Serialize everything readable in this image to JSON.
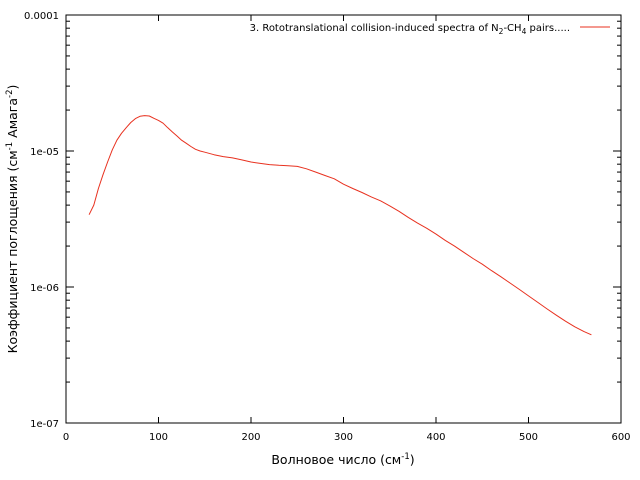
{
  "chart_data": {
    "type": "line",
    "title": "",
    "xlabel": {
      "text": "Волновое число (см",
      "sup": "-1",
      "tail": ")"
    },
    "ylabel": {
      "part1": "Коэффициент поглощения (см",
      "sup1": "-1",
      "part2": " Амага",
      "sup2": "-2",
      "tail": ")"
    },
    "x_scale": "linear",
    "y_scale": "log",
    "xlim": [
      0,
      600
    ],
    "ylim": [
      1e-07,
      0.0001
    ],
    "grid": false,
    "legend_position": "top-right",
    "x_ticks": [
      {
        "value": 0,
        "label": "0"
      },
      {
        "value": 100,
        "label": "100"
      },
      {
        "value": 200,
        "label": "200"
      },
      {
        "value": 300,
        "label": "300"
      },
      {
        "value": 400,
        "label": "400"
      },
      {
        "value": 500,
        "label": "500"
      },
      {
        "value": 600,
        "label": "600"
      }
    ],
    "y_ticks": [
      {
        "value": 1e-07,
        "label": "1e-07"
      },
      {
        "value": 1e-06,
        "label": "1e-06"
      },
      {
        "value": 1e-05,
        "label": "1e-05"
      },
      {
        "value": 0.0001,
        "label": "0.0001"
      }
    ],
    "series": [
      {
        "name": "3. Rototranslational collision-induced spectra of N2-CH4 pairs.....",
        "legend_parts": [
          {
            "t": "3. Rototranslational collision-induced spectra of N",
            "s": ""
          },
          {
            "t": "2",
            "s": "sub"
          },
          {
            "t": "-CH",
            "s": ""
          },
          {
            "t": "4",
            "s": "sub"
          },
          {
            "t": " pairs.....",
            "s": ""
          }
        ],
        "color": "#e8311f",
        "x": [
          25,
          30,
          35,
          40,
          45,
          50,
          55,
          60,
          65,
          70,
          75,
          80,
          85,
          90,
          95,
          100,
          105,
          110,
          115,
          120,
          125,
          130,
          135,
          140,
          145,
          150,
          160,
          170,
          180,
          190,
          200,
          210,
          220,
          230,
          240,
          250,
          260,
          270,
          280,
          290,
          300,
          310,
          320,
          330,
          340,
          350,
          360,
          370,
          380,
          390,
          400,
          410,
          420,
          430,
          440,
          450,
          460,
          470,
          480,
          490,
          500,
          510,
          520,
          530,
          540,
          550,
          560,
          568
        ],
        "y": [
          3.4e-06,
          4e-06,
          5.3e-06,
          6.7e-06,
          8.3e-06,
          1.02e-05,
          1.2e-05,
          1.35e-05,
          1.48e-05,
          1.62e-05,
          1.73e-05,
          1.8e-05,
          1.82e-05,
          1.81e-05,
          1.74e-05,
          1.68e-05,
          1.6e-05,
          1.48e-05,
          1.38e-05,
          1.29e-05,
          1.2e-05,
          1.14e-05,
          1.08e-05,
          1.03e-05,
          1e-05,
          9.8e-06,
          9.4e-06,
          9.1e-06,
          8.9e-06,
          8.6e-06,
          8.3e-06,
          8.1e-06,
          7.95e-06,
          7.85e-06,
          7.8e-06,
          7.7e-06,
          7.4e-06,
          7e-06,
          6.6e-06,
          6.25e-06,
          5.7e-06,
          5.3e-06,
          4.95e-06,
          4.6e-06,
          4.3e-06,
          3.95e-06,
          3.6e-06,
          3.25e-06,
          2.95e-06,
          2.7e-06,
          2.45e-06,
          2.2e-06,
          2e-06,
          1.8e-06,
          1.62e-06,
          1.47e-06,
          1.32e-06,
          1.19e-06,
          1.07e-06,
          9.6e-07,
          8.6e-07,
          7.7e-07,
          6.9e-07,
          6.2e-07,
          5.6e-07,
          5.1e-07,
          4.7e-07,
          4.45e-07
        ]
      }
    ]
  }
}
